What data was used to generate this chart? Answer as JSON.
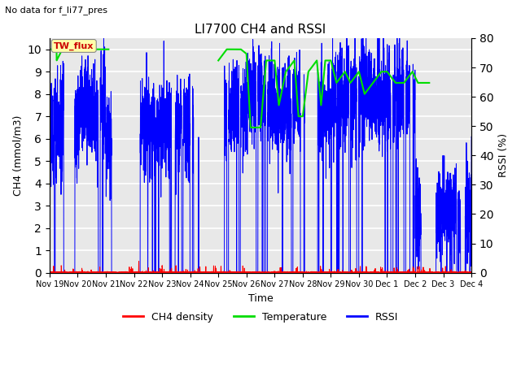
{
  "title": "LI7700 CH4 and RSSI",
  "suptitle": "No data for f_li77_pres",
  "xlabel": "Time",
  "ylabel_left": "CH4 (mmol/m3)",
  "ylabel_right": "RSSI (%)",
  "ylim_left": [
    0.0,
    10.5
  ],
  "ylim_right": [
    0,
    88
  ],
  "yticks_left": [
    0.0,
    1.0,
    2.0,
    3.0,
    4.0,
    5.0,
    6.0,
    7.0,
    8.0,
    9.0,
    10.0
  ],
  "yticks_right": [
    0,
    10,
    20,
    30,
    40,
    50,
    60,
    70,
    80
  ],
  "xtick_labels": [
    "Nov 19",
    "Nov 20",
    "Nov 21",
    "Nov 22",
    "Nov 23",
    "Nov 24",
    "Nov 25",
    "Nov 26",
    "Nov 27",
    "Nov 28",
    "Nov 29",
    "Nov 30",
    "Dec 1",
    "Dec 2",
    "Dec 3",
    "Dec 4"
  ],
  "legend_labels": [
    "CH4 density",
    "Temperature",
    "RSSI"
  ],
  "legend_colors": [
    "#ff0000",
    "#00dd00",
    "#0000ff"
  ],
  "annotation_text": "TW_flux",
  "annotation_color": "#cc0000",
  "annotation_box_color": "#ffffaa",
  "bg_color": "#e8e8e8",
  "grid_color": "#ffffff",
  "fig_width": 6.4,
  "fig_height": 4.8,
  "dpi": 100
}
